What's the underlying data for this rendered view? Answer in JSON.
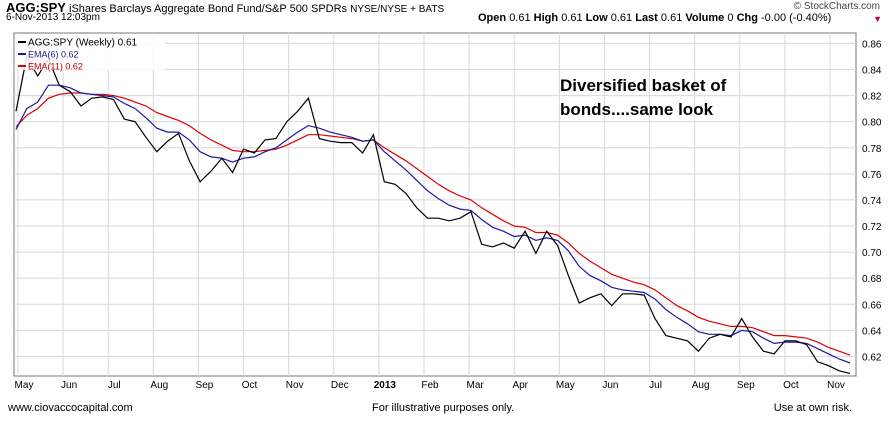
{
  "header": {
    "symbol": "AGG:SPY",
    "description": "iShares Barclays Aggregate Bond Fund/S&P 500 SPDRs",
    "exchange": "NYSE/NYSE + BATS",
    "datetime": "6-Nov-2013 12:03pm",
    "quote": {
      "open_label": "Open",
      "open": "0.61",
      "high_label": "High",
      "high": "0.61",
      "low_label": "Low",
      "low": "0.61",
      "last_label": "Last",
      "last": "0.61",
      "volume_label": "Volume",
      "volume": "0",
      "chg_label": "Chg",
      "chg": "-0.00 (-0.40%)"
    },
    "brand": "© StockCharts.com"
  },
  "annotation": "Diversified basket of bonds....same look",
  "footer": {
    "left": "www.ciovaccocapital.com",
    "middle": "For illustrative purposes only.",
    "right": "Use at own risk."
  },
  "colors": {
    "price": "#000000",
    "ema6": "#1a1aa0",
    "ema11": "#e00000",
    "grid": "#d8d8d8"
  },
  "chart_data": {
    "type": "line",
    "x_tick_labels": [
      "May",
      "Jun",
      "Jul",
      "Aug",
      "Sep",
      "Oct",
      "Nov",
      "Dec",
      "2013",
      "Feb",
      "Mar",
      "Apr",
      "May",
      "Jun",
      "Jul",
      "Aug",
      "Sep",
      "Oct",
      "Nov"
    ],
    "y_ticks": [
      0.62,
      0.64,
      0.66,
      0.68,
      0.7,
      0.72,
      0.74,
      0.76,
      0.78,
      0.8,
      0.82,
      0.84,
      0.86
    ],
    "ylim": [
      0.605,
      0.868
    ],
    "grid": true,
    "legend_position": "top-left",
    "series": [
      {
        "name": "AGG:SPY (Weekly) 0.61",
        "color": "#000000",
        "values": [
          0.808,
          0.85,
          0.835,
          0.848,
          0.828,
          0.823,
          0.812,
          0.818,
          0.819,
          0.817,
          0.802,
          0.8,
          0.788,
          0.777,
          0.785,
          0.791,
          0.77,
          0.754,
          0.762,
          0.772,
          0.761,
          0.779,
          0.776,
          0.786,
          0.787,
          0.8,
          0.808,
          0.818,
          0.787,
          0.785,
          0.784,
          0.784,
          0.776,
          0.79,
          0.754,
          0.752,
          0.745,
          0.734,
          0.726,
          0.726,
          0.724,
          0.726,
          0.731,
          0.706,
          0.704,
          0.707,
          0.703,
          0.716,
          0.699,
          0.716,
          0.705,
          0.682,
          0.661,
          0.665,
          0.668,
          0.659,
          0.668,
          0.668,
          0.667,
          0.649,
          0.636,
          0.634,
          0.632,
          0.624,
          0.634,
          0.637,
          0.635,
          0.649,
          0.635,
          0.624,
          0.622,
          0.632,
          0.632,
          0.629,
          0.616,
          0.613,
          0.609,
          0.607
        ]
      },
      {
        "name": "EMA(6) 0.62",
        "color": "#1a1aa0",
        "values": [
          0.794,
          0.81,
          0.815,
          0.828,
          0.828,
          0.826,
          0.822,
          0.821,
          0.82,
          0.819,
          0.814,
          0.81,
          0.803,
          0.795,
          0.792,
          0.792,
          0.786,
          0.777,
          0.773,
          0.772,
          0.769,
          0.772,
          0.773,
          0.777,
          0.78,
          0.786,
          0.792,
          0.797,
          0.795,
          0.792,
          0.79,
          0.788,
          0.785,
          0.786,
          0.777,
          0.77,
          0.763,
          0.755,
          0.747,
          0.741,
          0.736,
          0.733,
          0.732,
          0.725,
          0.719,
          0.716,
          0.712,
          0.713,
          0.709,
          0.711,
          0.709,
          0.701,
          0.689,
          0.682,
          0.678,
          0.673,
          0.671,
          0.67,
          0.669,
          0.664,
          0.656,
          0.65,
          0.645,
          0.639,
          0.637,
          0.637,
          0.636,
          0.64,
          0.639,
          0.634,
          0.63,
          0.631,
          0.631,
          0.63,
          0.626,
          0.622,
          0.618,
          0.615
        ]
      },
      {
        "name": "EMA(11) 0.62",
        "color": "#e00000",
        "values": [
          0.796,
          0.805,
          0.81,
          0.818,
          0.821,
          0.822,
          0.822,
          0.821,
          0.821,
          0.82,
          0.818,
          0.815,
          0.812,
          0.807,
          0.804,
          0.801,
          0.797,
          0.791,
          0.786,
          0.782,
          0.778,
          0.777,
          0.777,
          0.778,
          0.779,
          0.782,
          0.786,
          0.79,
          0.79,
          0.789,
          0.788,
          0.787,
          0.785,
          0.786,
          0.78,
          0.775,
          0.77,
          0.764,
          0.758,
          0.752,
          0.747,
          0.743,
          0.74,
          0.734,
          0.729,
          0.724,
          0.72,
          0.719,
          0.715,
          0.715,
          0.713,
          0.707,
          0.699,
          0.693,
          0.688,
          0.683,
          0.68,
          0.677,
          0.675,
          0.671,
          0.665,
          0.659,
          0.655,
          0.65,
          0.647,
          0.645,
          0.643,
          0.643,
          0.642,
          0.639,
          0.636,
          0.636,
          0.635,
          0.634,
          0.631,
          0.627,
          0.624,
          0.621
        ]
      }
    ]
  }
}
